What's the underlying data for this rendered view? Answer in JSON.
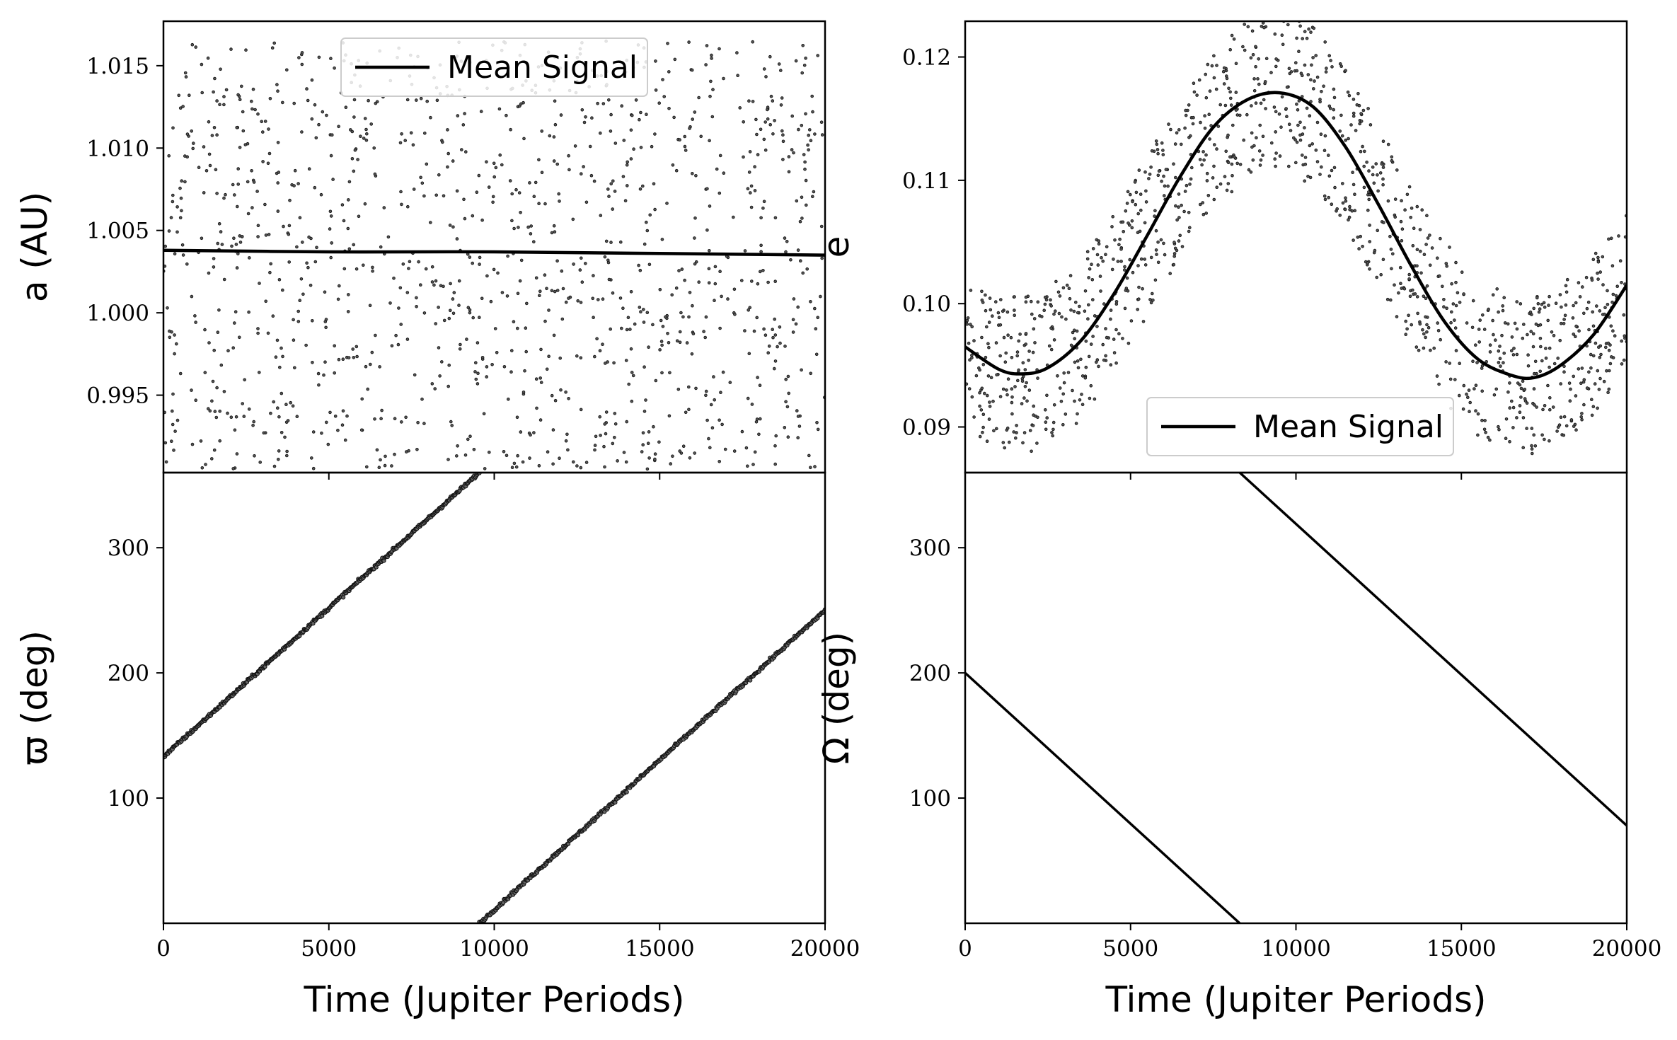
{
  "chart_data": [
    {
      "type": "scatter",
      "panel": "top-left",
      "ylabel": "a (AU)",
      "xlabel": "",
      "xlim": [
        0,
        20000
      ],
      "ylim": [
        0.9903,
        1.0177
      ],
      "xticks": [
        0,
        5000,
        10000,
        15000,
        20000
      ],
      "xtick_labels": [
        "",
        "",
        "",
        "",
        ""
      ],
      "yticks": [
        0.995,
        1.0,
        1.005,
        1.01,
        1.015
      ],
      "ytick_labels": [
        "0.995",
        "1.000",
        "1.005",
        "1.010",
        "1.015"
      ],
      "legend": {
        "label": "Mean Signal",
        "placement": "top-center"
      },
      "scatter": {
        "description_points": 1200,
        "y_min": 0.9905,
        "y_max": 1.0165,
        "distribution": "uniform"
      },
      "series": [
        {
          "name": "Mean Signal",
          "x": [
            0,
            5000,
            10000,
            15000,
            20000
          ],
          "y": [
            1.0038,
            1.0037,
            1.0037,
            1.0036,
            1.0035
          ]
        }
      ]
    },
    {
      "type": "scatter",
      "panel": "top-right",
      "ylabel": "e",
      "xlabel": "",
      "xlim": [
        0,
        20000
      ],
      "ylim": [
        0.0863,
        0.1229
      ],
      "xticks": [
        0,
        5000,
        10000,
        15000,
        20000
      ],
      "xtick_labels": [
        "",
        "",
        "",
        "",
        ""
      ],
      "yticks": [
        0.09,
        0.1,
        0.11,
        0.12
      ],
      "ytick_labels": [
        "0.09",
        "0.10",
        "0.11",
        "0.12"
      ],
      "legend": {
        "label": "Mean Signal",
        "placement": "bottom-center"
      },
      "scatter": {
        "description_points": 1200,
        "spread": 0.0065
      },
      "series": [
        {
          "name": "Mean Signal",
          "x": [
            0,
            1000,
            1700,
            2500,
            3500,
            4500,
            5500,
            6500,
            7500,
            8500,
            9500,
            10500,
            11500,
            12500,
            13500,
            14500,
            15500,
            16500,
            17200,
            18000,
            19000,
            20000
          ],
          "y": [
            0.0965,
            0.0947,
            0.0943,
            0.0948,
            0.097,
            0.1008,
            0.1055,
            0.1103,
            0.1143,
            0.1165,
            0.1171,
            0.116,
            0.1127,
            0.108,
            0.103,
            0.0985,
            0.0955,
            0.0942,
            0.094,
            0.095,
            0.0975,
            0.1015
          ]
        }
      ]
    },
    {
      "type": "scatter",
      "panel": "bottom-left",
      "ylabel": "ϖ (deg)",
      "xlabel": "Time (Jupiter Periods)",
      "xlim": [
        0,
        20000
      ],
      "ylim": [
        0,
        360
      ],
      "xticks": [
        0,
        5000,
        10000,
        15000,
        20000
      ],
      "xtick_labels": [
        "0",
        "5000",
        "10000",
        "15000",
        "20000"
      ],
      "yticks": [
        100,
        200,
        300
      ],
      "ytick_labels": [
        "100",
        "200",
        "300"
      ],
      "series": [
        {
          "name": "",
          "x": [
            0,
            9550
          ],
          "y": [
            133,
            360
          ]
        },
        {
          "name": "",
          "x": [
            9550,
            20000
          ],
          "y": [
            0,
            250
          ]
        }
      ]
    },
    {
      "type": "line",
      "panel": "bottom-right",
      "ylabel": "Ω (deg)",
      "xlabel": "Time (Jupiter Periods)",
      "xlim": [
        0,
        20000
      ],
      "ylim": [
        0,
        360
      ],
      "xticks": [
        0,
        5000,
        10000,
        15000,
        20000
      ],
      "xtick_labels": [
        "0",
        "5000",
        "10000",
        "15000",
        "20000"
      ],
      "yticks": [
        100,
        200,
        300
      ],
      "ytick_labels": [
        "100",
        "200",
        "300"
      ],
      "series": [
        {
          "name": "",
          "x": [
            0,
            8300
          ],
          "y": [
            200,
            0
          ]
        },
        {
          "name": "",
          "x": [
            8300,
            20000
          ],
          "y": [
            360,
            78
          ]
        }
      ]
    }
  ]
}
